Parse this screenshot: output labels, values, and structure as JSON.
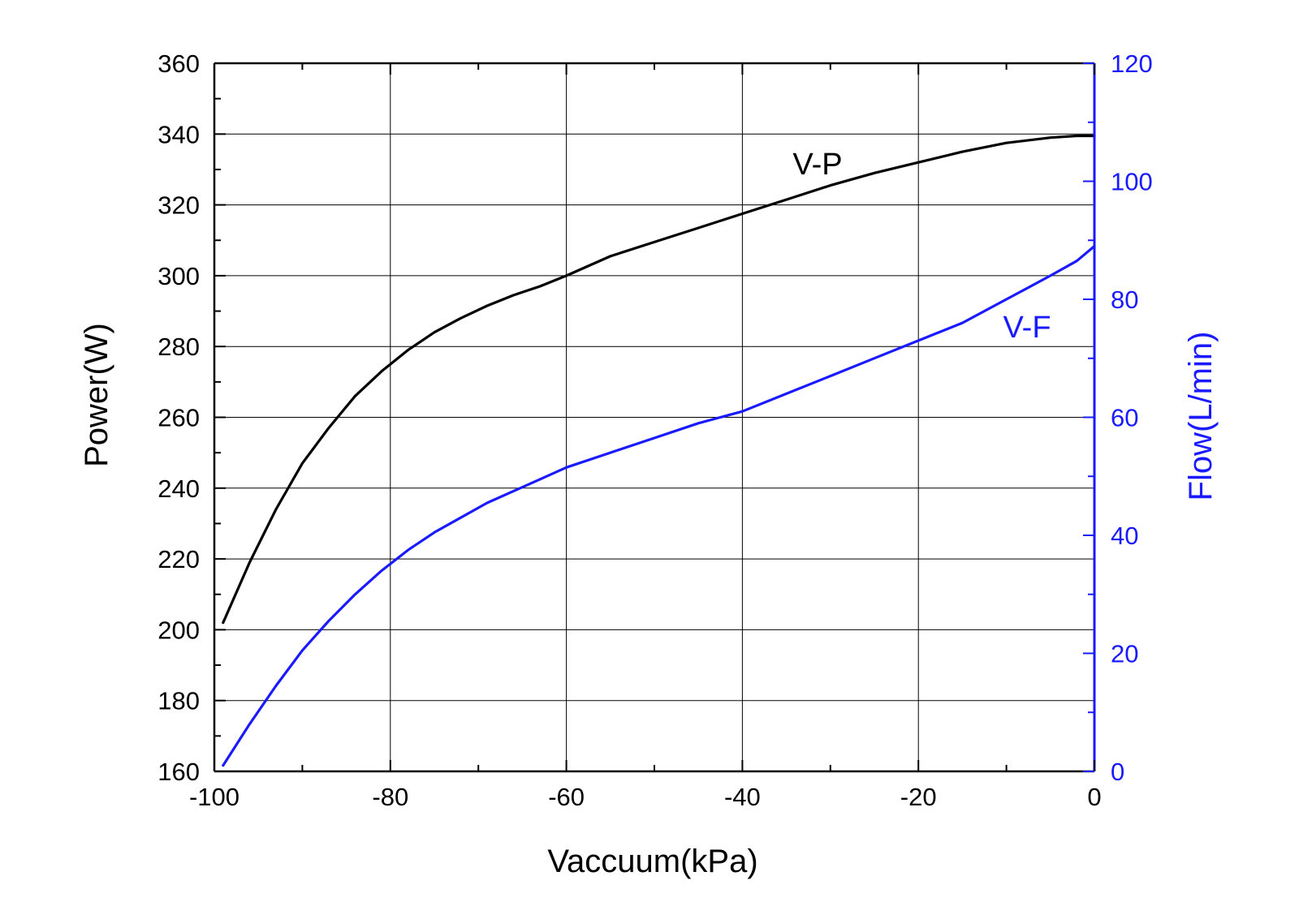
{
  "colors": {
    "left_axis": "#000000",
    "right_axis": "#1a1aff",
    "grid": "#000000",
    "series_vp": "#000000",
    "series_vf": "#1a1aff"
  },
  "chart_data": {
    "type": "line",
    "title": "",
    "xlabel": "Vaccuum(kPa)",
    "ylabel_left": "Power(W)",
    "ylabel_right": "Flow(L/min)",
    "xlim": [
      -100,
      0
    ],
    "ylim_left": [
      160,
      360
    ],
    "ylim_right": [
      0,
      120
    ],
    "grid": true,
    "legend": "none (inline curve labels)",
    "x_ticks": [
      -100,
      -80,
      -60,
      -40,
      -20,
      0
    ],
    "x_tick_labels": [
      "-100",
      "-80",
      "-60",
      "-40",
      "-20",
      "0"
    ],
    "y_left_ticks": [
      160,
      180,
      200,
      220,
      240,
      260,
      280,
      300,
      320,
      340,
      360
    ],
    "y_left_tick_labels": [
      "160",
      "180",
      "200",
      "220",
      "240",
      "260",
      "280",
      "300",
      "320",
      "340",
      "360"
    ],
    "y_right_ticks": [
      0,
      20,
      40,
      60,
      80,
      100,
      120
    ],
    "y_right_tick_labels": [
      "0",
      "20",
      "40",
      "60",
      "80",
      "100",
      "120"
    ],
    "series": [
      {
        "name": "V-P",
        "axis": "left",
        "x": [
          -99,
          -96,
          -93,
          -90,
          -87,
          -84,
          -81,
          -78,
          -75,
          -72,
          -69,
          -66,
          -63,
          -60,
          -55,
          -50,
          -45,
          -40,
          -35,
          -30,
          -25,
          -20,
          -15,
          -10,
          -5,
          -2,
          0
        ],
        "y": [
          202,
          219,
          234,
          247,
          257,
          266,
          273,
          279,
          284,
          288,
          291.5,
          294.5,
          297,
          300,
          305.5,
          309.5,
          313.5,
          317.5,
          321.5,
          325.5,
          329,
          332,
          335,
          337.5,
          339,
          339.5,
          339.5
        ]
      },
      {
        "name": "V-F",
        "axis": "right",
        "x": [
          -99,
          -96,
          -93,
          -90,
          -87,
          -84,
          -81,
          -78,
          -75,
          -72,
          -69,
          -66,
          -63,
          -60,
          -55,
          -50,
          -45,
          -40,
          -35,
          -30,
          -25,
          -20,
          -15,
          -10,
          -5,
          -2,
          0
        ],
        "y": [
          1,
          8,
          14.5,
          20.5,
          25.5,
          30,
          34,
          37.5,
          40.5,
          43,
          45.5,
          47.5,
          49.5,
          51.5,
          54,
          56.5,
          59,
          61,
          64,
          67,
          70,
          73,
          76,
          80,
          84,
          86.5,
          89
        ]
      }
    ],
    "annotations": [
      {
        "text": "V-P",
        "series": "V-P"
      },
      {
        "text": "V-F",
        "series": "V-F"
      }
    ]
  }
}
